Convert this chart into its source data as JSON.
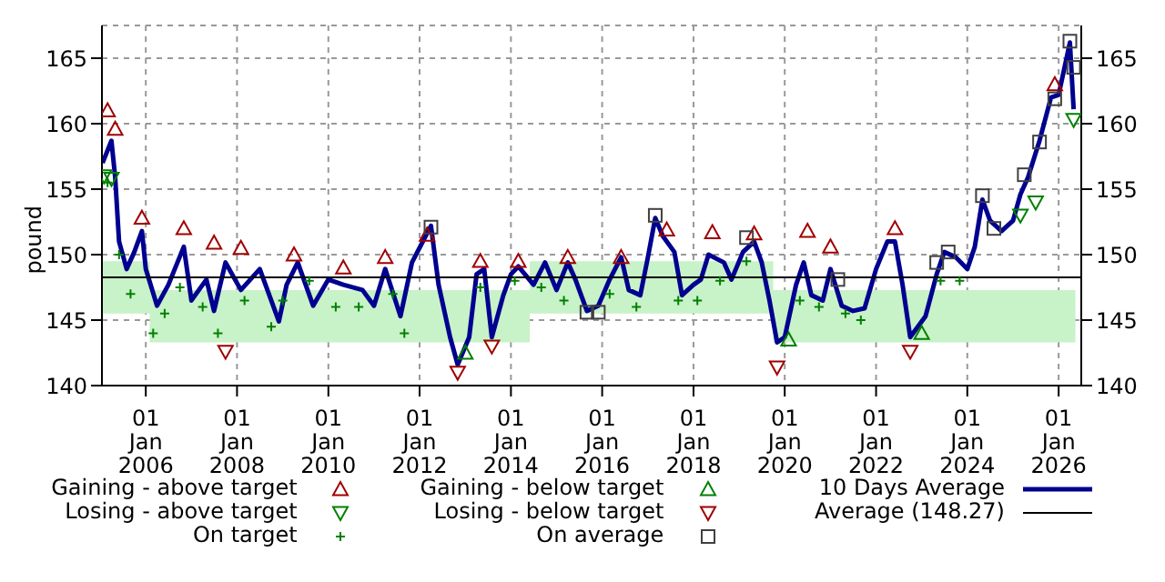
{
  "chart_data": {
    "type": "line",
    "ylabel": "pound",
    "xlim": [
      "2005-01-15",
      "2026-07-01"
    ],
    "xticks": [
      {
        "value": "2006-01-01",
        "label": "01 Jan 2006"
      },
      {
        "value": "2008-01-01",
        "label": "01 Jan 2008"
      },
      {
        "value": "2010-01-01",
        "label": "01 Jan 2010"
      },
      {
        "value": "2012-01-01",
        "label": "01 Jan 2012"
      },
      {
        "value": "2014-01-01",
        "label": "01 Jan 2014"
      },
      {
        "value": "2016-01-01",
        "label": "01 Jan 2016"
      },
      {
        "value": "2018-01-01",
        "label": "01 Jan 2018"
      },
      {
        "value": "2020-01-01",
        "label": "01 Jan 2020"
      },
      {
        "value": "2022-01-01",
        "label": "01 Jan 2022"
      },
      {
        "value": "2024-01-01",
        "label": "01 Jan 2024"
      },
      {
        "value": "2026-01-01",
        "label": "01 Jan 2026"
      }
    ],
    "ylim": [
      140,
      167.5
    ],
    "yticks": [
      140,
      145,
      150,
      155,
      160,
      165
    ],
    "y2lim": [
      140,
      167.5
    ],
    "y2ticks": [
      140,
      145,
      150,
      155,
      160,
      165
    ],
    "grid": true,
    "legend": "bottom",
    "ref_lines": [
      {
        "axis": "y",
        "value": 148.27,
        "label": "Average (148.27)",
        "color": "#000000"
      }
    ],
    "series": [
      {
        "type": "area",
        "color": "#c8f2c8",
        "x": [
          "2005-01-15",
          "2006-02-01",
          "2006-02-01",
          "2014-06-01",
          "2014-06-01",
          "2019-10-01",
          "2019-10-01",
          "2026-05-15"
        ],
        "lower": [
          145.5,
          145.5,
          143.3,
          143.3,
          145.5,
          145.5,
          143.3,
          143.3
        ],
        "upper": [
          149.5,
          149.5,
          147.3,
          147.3,
          149.5,
          149.5,
          147.3,
          147.3
        ],
        "values": [
          null,
          null,
          null,
          null,
          null,
          null,
          null,
          null
        ]
      },
      {
        "type": "scatter",
        "name": "Gaining - above target",
        "marker": "triangle",
        "color": "#a00000",
        "x": [
          "2005-03",
          "2005-05",
          "2005-12",
          "2006-11",
          "2007-07",
          "2008-02",
          "2009-04",
          "2010-05",
          "2011-04",
          "2012-03",
          "2013-05",
          "2014-03",
          "2015-04",
          "2016-06",
          "2017-06",
          "2018-06",
          "2019-05",
          "2020-07",
          "2021-01",
          "2022-06",
          "2025-12"
        ],
        "values": [
          161.0,
          159.6,
          152.8,
          152.0,
          150.9,
          150.5,
          150.0,
          149.0,
          149.8,
          151.5,
          149.5,
          149.5,
          149.8,
          149.8,
          151.9,
          151.7,
          151.6,
          151.8,
          150.6,
          152.0,
          163.0
        ]
      },
      {
        "type": "scatter",
        "name": "Losing - above target",
        "marker": "triangle-down",
        "color": "#008000",
        "x": [
          "2005-02",
          "2005-04",
          "2025-03",
          "2025-07",
          "2026-05"
        ],
        "values": [
          156.0,
          155.8,
          153.0,
          154.0,
          160.3
        ]
      },
      {
        "type": "scatter",
        "name": "On target",
        "marker": "cross",
        "color": "#008000",
        "x": [
          "2005-03",
          "2005-06",
          "2005-09",
          "2006-03",
          "2006-06",
          "2006-10",
          "2007-04",
          "2007-08",
          "2008-03",
          "2008-10",
          "2009-01",
          "2009-08",
          "2010-03",
          "2010-09",
          "2011-06",
          "2011-09",
          "2013-05",
          "2014-02",
          "2014-09",
          "2015-03",
          "2016-03",
          "2016-10",
          "2017-09",
          "2018-02",
          "2018-08",
          "2019-03",
          "2020-05",
          "2020-10",
          "2021-05",
          "2021-09",
          "2023-06",
          "2023-11"
        ],
        "values": [
          155.5,
          150.0,
          147.0,
          144.0,
          145.5,
          147.5,
          146.0,
          144.0,
          146.5,
          144.5,
          146.5,
          148.0,
          146.0,
          146.0,
          147.0,
          144.0,
          147.5,
          148.0,
          147.5,
          146.5,
          147.0,
          146.0,
          146.5,
          146.5,
          148.0,
          149.5,
          146.5,
          146.0,
          145.5,
          145.0,
          148.0,
          148.0
        ]
      },
      {
        "type": "scatter",
        "name": "Gaining - below target",
        "marker": "triangle",
        "color": "#008000",
        "x": [
          "2013-01",
          "2020-02",
          "2023-01"
        ],
        "values": [
          142.5,
          143.5,
          144.0
        ]
      },
      {
        "type": "scatter",
        "name": "Losing - below target",
        "marker": "triangle-down",
        "color": "#a00000",
        "x": [
          "2007-10",
          "2012-11",
          "2013-08",
          "2019-11",
          "2022-10"
        ],
        "values": [
          142.6,
          141.0,
          143.0,
          141.4,
          142.6
        ]
      },
      {
        "type": "scatter",
        "name": "On average",
        "marker": "square",
        "color": "#404040",
        "x": [
          "2012-04",
          "2015-09",
          "2015-12",
          "2017-03",
          "2019-03",
          "2021-03",
          "2023-05",
          "2023-08",
          "2024-05",
          "2024-08",
          "2025-04",
          "2025-08",
          "2025-12",
          "2026-04",
          "2026-05"
        ],
        "values": [
          152.1,
          145.6,
          145.6,
          153.0,
          151.3,
          148.1,
          149.4,
          150.2,
          154.5,
          152.0,
          156.1,
          158.6,
          161.9,
          166.3,
          164.3
        ]
      },
      {
        "name": "10 Days Average",
        "color": "#000090",
        "x": [
          "2005-01-20",
          "2005-04",
          "2005-05",
          "2005-06",
          "2005-08",
          "2005-10",
          "2005-12",
          "2006-01",
          "2006-04",
          "2006-07",
          "2006-11",
          "2007-01",
          "2007-05",
          "2007-07",
          "2007-10",
          "2008-02",
          "2008-07",
          "2008-12",
          "2009-02",
          "2009-05",
          "2009-09",
          "2010-01",
          "2010-05",
          "2010-10",
          "2011-01",
          "2011-04",
          "2011-08",
          "2011-11",
          "2012-04",
          "2012-06",
          "2012-09",
          "2012-11",
          "2013-02",
          "2013-04",
          "2013-06",
          "2013-08",
          "2013-11",
          "2014-01",
          "2014-03",
          "2014-07",
          "2014-10",
          "2015-01",
          "2015-04",
          "2015-06",
          "2015-09",
          "2015-12",
          "2016-03",
          "2016-06",
          "2016-08",
          "2016-11",
          "2017-01",
          "2017-03",
          "2017-05",
          "2017-08",
          "2017-10",
          "2018-01",
          "2018-03",
          "2018-05",
          "2018-09",
          "2018-11",
          "2019-02",
          "2019-05",
          "2019-07",
          "2019-09",
          "2019-11",
          "2020-01",
          "2020-04",
          "2020-06",
          "2020-08",
          "2020-11",
          "2021-01",
          "2021-04",
          "2021-07",
          "2021-10",
          "2022-01",
          "2022-04",
          "2022-06",
          "2022-08",
          "2022-10",
          "2023-01",
          "2023-02",
          "2023-05",
          "2023-07",
          "2023-10",
          "2024-01",
          "2024-03",
          "2024-05",
          "2024-07",
          "2024-10",
          "2025-01",
          "2025-03",
          "2025-05",
          "2025-08",
          "2025-11",
          "2026-01",
          "2026-04",
          "2026-05"
        ],
        "values": [
          157.0,
          158.7,
          155.9,
          151.0,
          148.9,
          150.2,
          151.8,
          148.9,
          146.1,
          147.7,
          150.6,
          146.5,
          148.1,
          145.7,
          149.4,
          147.3,
          148.9,
          144.9,
          147.7,
          149.4,
          146.1,
          148.1,
          147.7,
          147.3,
          146.1,
          148.9,
          145.3,
          149.4,
          152.2,
          147.7,
          143.7,
          141.6,
          143.7,
          148.5,
          148.9,
          143.7,
          146.9,
          148.5,
          149.1,
          147.7,
          149.4,
          147.3,
          149.4,
          148.1,
          145.7,
          146.1,
          148.1,
          149.8,
          147.3,
          146.9,
          149.8,
          152.8,
          151.4,
          150.2,
          146.9,
          147.7,
          148.1,
          150.0,
          149.4,
          148.1,
          150.2,
          151.0,
          149.4,
          146.5,
          143.3,
          143.7,
          147.7,
          149.4,
          146.9,
          146.5,
          148.9,
          146.1,
          145.7,
          145.9,
          148.9,
          151.0,
          151.0,
          147.7,
          143.7,
          144.9,
          145.3,
          148.5,
          150.2,
          149.8,
          148.9,
          150.6,
          154.2,
          152.6,
          151.8,
          152.6,
          154.6,
          155.9,
          158.7,
          162.0,
          162.2,
          166.2,
          161.1
        ]
      }
    ]
  }
}
